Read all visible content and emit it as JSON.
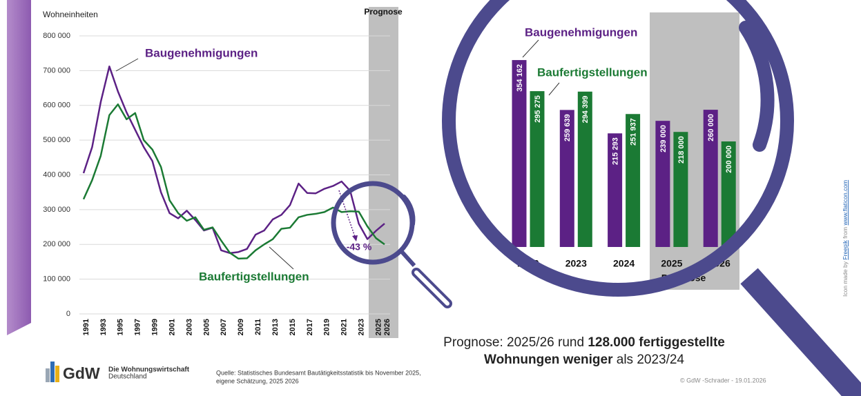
{
  "chart_data": [
    {
      "type": "line",
      "y_label": "Wohneinheiten",
      "prognosis_label": "Prognose",
      "annotation": "-43 %",
      "categories": [
        "1991",
        null,
        "1993",
        null,
        "1995",
        null,
        "1997",
        null,
        "1999",
        null,
        "2001",
        null,
        "2003",
        null,
        "2005",
        null,
        "2007",
        null,
        "2009",
        null,
        "2011",
        null,
        "2013",
        null,
        "2015",
        null,
        "2017",
        null,
        "2019",
        null,
        "2021",
        null,
        "2023",
        null,
        "2025",
        "2026"
      ],
      "ylim": [
        0,
        800000
      ],
      "yticks": [
        0,
        {
          "value": 100000,
          "label": "100 000"
        },
        {
          "value": 200000,
          "label": "200 000"
        },
        {
          "value": 300000,
          "label": "300 000"
        },
        {
          "value": 400000,
          "label": "400 000"
        },
        {
          "value": 500000,
          "label": "500 000"
        },
        {
          "value": 600000,
          "label": "600 000"
        },
        {
          "value": 700000,
          "label": "700 000"
        },
        {
          "value": 800000,
          "label": "800 000"
        }
      ],
      "grid": true,
      "series": [
        {
          "name": "Baugenehmigungen",
          "color": "#5c2185",
          "values": [
            405000,
            480000,
            610000,
            712000,
            640000,
            580000,
            530000,
            480000,
            440000,
            350000,
            290000,
            275000,
            297000,
            270000,
            240000,
            248000,
            183000,
            175000,
            178000,
            187000,
            228000,
            240000,
            272000,
            285000,
            313000,
            375000,
            348000,
            347000,
            360000,
            368000,
            381000,
            354162,
            259639,
            215293,
            239000,
            260000
          ]
        },
        {
          "name": "Baufertigstellungen",
          "color": "#1b7a34",
          "values": [
            330000,
            385000,
            455000,
            572000,
            603000,
            560000,
            578000,
            500000,
            473000,
            423000,
            327000,
            290000,
            268000,
            278000,
            242000,
            249000,
            211000,
            176000,
            159000,
            160000,
            183000,
            200000,
            215000,
            245000,
            248000,
            278000,
            285000,
            288000,
            293000,
            306000,
            293000,
            295275,
            294399,
            251937,
            218000,
            200000
          ]
        }
      ]
    },
    {
      "type": "bar",
      "prognosis_label": "Prognose",
      "categories": [
        "2022",
        "2023",
        "2024",
        "2025",
        "2026"
      ],
      "series": [
        {
          "name": "Baugenehmigungen",
          "color": "#5c2185",
          "values": [
            354162,
            259639,
            215293,
            239000,
            260000
          ],
          "value_labels": [
            "354 162",
            "259 639",
            "215 293",
            "239 000",
            "260 000"
          ]
        },
        {
          "name": "Baufertigstellungen",
          "color": "#1b7a34",
          "values": [
            295275,
            294399,
            251937,
            218000,
            200000
          ],
          "value_labels": [
            "295 275",
            "294 399",
            "251 937",
            "218 000",
            "200 000"
          ]
        }
      ]
    }
  ],
  "prognosis_text": {
    "prefix": "Prognose: 2025/26 rund ",
    "bold": "128.000 fertiggestellte Wohnungen weniger",
    "suffix": " als 2023/24"
  },
  "source": [
    "Quelle: Statistisches Bundesamt Bautätigkeitsstatistik bis November 2025,",
    "eigene Schätzung, 2025 2026"
  ],
  "logo": {
    "name": "GdW",
    "line1": "Die Wohnungswirtschaft",
    "line2": "Deutschland"
  },
  "footer": "© GdW -Schrader  - 19.01.2026",
  "icon_credit": {
    "prefix": "Icon made by ",
    "author": "Freepik",
    "middle": " from ",
    "site": "www.flaticon.com"
  }
}
